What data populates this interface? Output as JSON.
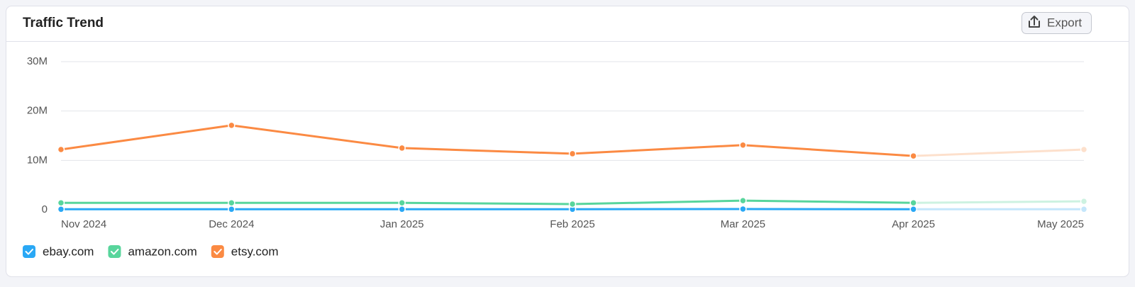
{
  "header": {
    "title": "Traffic Trend",
    "export_button": "Export"
  },
  "chart_data": {
    "type": "line",
    "x": [
      "Nov 2024",
      "Dec 2024",
      "Jan 2025",
      "Feb 2025",
      "Mar 2025",
      "Apr 2025",
      "May 2025"
    ],
    "series": [
      {
        "name": "ebay.com",
        "color": "#2aa8f5",
        "faded_color": "#c4e6fb",
        "values": [
          100000,
          100000,
          100000,
          100000,
          150000,
          100000,
          100000
        ]
      },
      {
        "name": "amazon.com",
        "color": "#58d59c",
        "faded_color": "#cdf2e1",
        "values": [
          1400000,
          1400000,
          1400000,
          1150000,
          1850000,
          1400000,
          1700000
        ]
      },
      {
        "name": "etsy.com",
        "color": "#fb8a43",
        "faded_color": "#fde0cc",
        "values": [
          12200000,
          17100000,
          12500000,
          11350000,
          13100000,
          10900000,
          12200000
        ]
      }
    ],
    "ylim": [
      0,
      30000000
    ],
    "yticks": [
      0,
      {
        "value": 10000000,
        "label": "10M"
      },
      {
        "value": 20000000,
        "label": "20M"
      },
      {
        "value": 30000000,
        "label": "30M"
      }
    ],
    "grid": true
  }
}
